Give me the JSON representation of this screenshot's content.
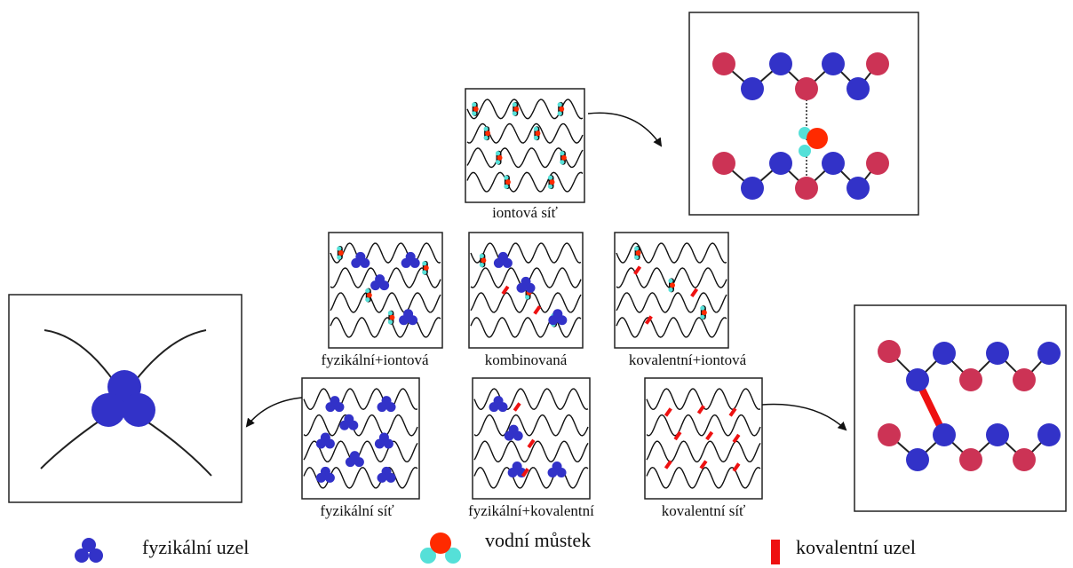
{
  "labels": {
    "ionic": "iontová síť",
    "physical_ionic": "fyzikální+iontová",
    "combined": "kombinovaná",
    "covalent_ionic": "kovalentní+iontová",
    "physical": "fyzikální síť",
    "physical_covalent": "fyzikální+kovalentní",
    "covalent": "kovalentní síť"
  },
  "legend": {
    "physical_node": "fyzikální uzel",
    "water_bridge": "vodní můstek",
    "covalent_node": "kovalentní uzel"
  },
  "colors": {
    "blue": "#3232c8",
    "crimson": "#cc3355",
    "red": "#ff2a00",
    "cyan": "#55e0d8",
    "bond_red": "#ee1111"
  }
}
